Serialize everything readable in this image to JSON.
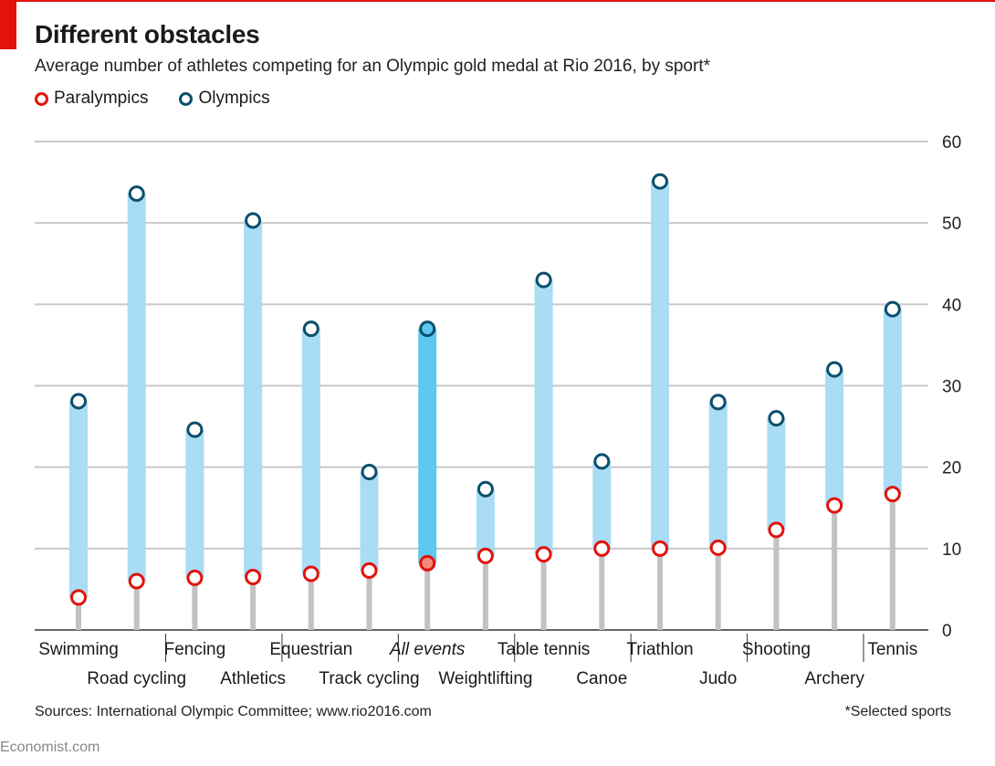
{
  "header": {
    "title": "Different obstacles",
    "subtitle": "Average number of athletes competing for an Olympic gold medal at Rio 2016, by sport*"
  },
  "legend": {
    "paralympics": "Paralympics",
    "olympics": "Olympics"
  },
  "footer": {
    "source": "Sources: International Olympic Committee; www.rio2016.com",
    "note": "*Selected sports",
    "brand": "Economist.com"
  },
  "colors": {
    "paralympics": "#e3120b",
    "olympics": "#0b4f6c",
    "range": "#a9dcf5",
    "range_highlight": "#5ec8ef",
    "highlight_dot": "#f08a7a",
    "stem": "#c2c2c2",
    "grid": "#c8c8c8",
    "accent": "#e3120b"
  },
  "chart_data": {
    "type": "dot-range",
    "ylim": [
      0,
      60
    ],
    "yticks": [
      0,
      10,
      20,
      30,
      40,
      50,
      60
    ],
    "y_axis_side": "right",
    "grid": true,
    "legend_position": "top-left",
    "categories": [
      "Swimming",
      "Road cycling",
      "Fencing",
      "Athletics",
      "Equestrian",
      "Track cycling",
      "All events",
      "Weightlifting",
      "Table tennis",
      "Canoe",
      "Triathlon",
      "Judo",
      "Shooting",
      "Archery",
      "Tennis"
    ],
    "highlight": "All events",
    "series": [
      {
        "name": "Paralympics",
        "values": [
          4.0,
          6.0,
          6.4,
          6.5,
          6.9,
          7.3,
          8.2,
          9.1,
          9.3,
          10.0,
          10.0,
          10.1,
          12.3,
          15.3,
          16.7
        ]
      },
      {
        "name": "Olympics",
        "values": [
          28.1,
          53.6,
          24.6,
          50.3,
          37.0,
          19.4,
          37.0,
          17.3,
          43.0,
          20.7,
          55.1,
          28.0,
          26.0,
          32.0,
          39.4
        ]
      }
    ]
  }
}
